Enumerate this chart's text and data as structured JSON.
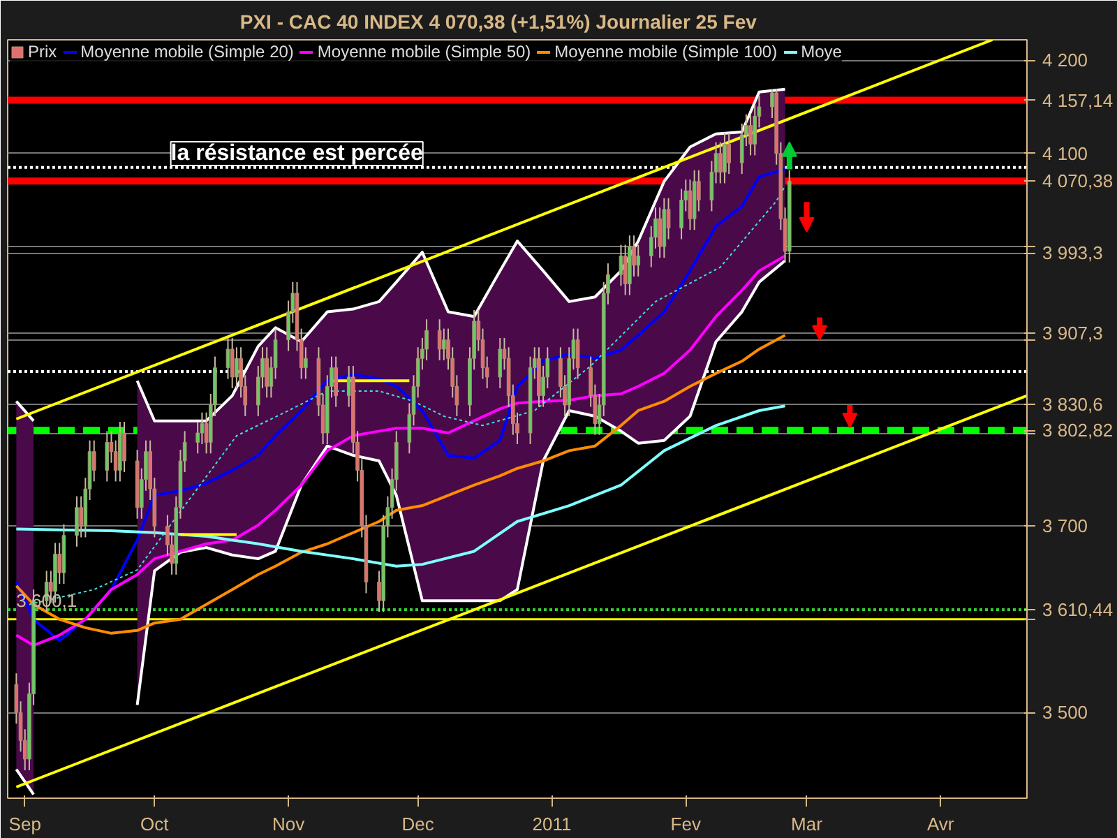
{
  "chart_data": {
    "type": "candlestick",
    "title": "PXI - CAC 40 INDEX    4 070,38 (+1,51%)    Journalier  25 Fev",
    "series": [
      {
        "type": "candlestick",
        "name": "Prix",
        "x": [
          "2010-08-30",
          "2010-08-31",
          "2010-09-01",
          "2010-09-02",
          "2010-09-03",
          "2010-09-06",
          "2010-09-07",
          "2010-09-08",
          "2010-09-09",
          "2010-09-10",
          "2010-09-13",
          "2010-09-14",
          "2010-09-15",
          "2010-09-16",
          "2010-09-17",
          "2010-09-20",
          "2010-09-21",
          "2010-09-22",
          "2010-09-23",
          "2010-09-24",
          "2010-09-27",
          "2010-09-28",
          "2010-09-29",
          "2010-09-30",
          "2010-10-01",
          "2010-10-04",
          "2010-10-05",
          "2010-10-06",
          "2010-10-07",
          "2010-10-08",
          "2010-10-11",
          "2010-10-12",
          "2010-10-13",
          "2010-10-14",
          "2010-10-15",
          "2010-10-18",
          "2010-10-19",
          "2010-10-20",
          "2010-10-21",
          "2010-10-22",
          "2010-10-25",
          "2010-10-26",
          "2010-10-27",
          "2010-10-28",
          "2010-10-29",
          "2010-11-01",
          "2010-11-02",
          "2010-11-03",
          "2010-11-04",
          "2010-11-05",
          "2010-11-08",
          "2010-11-09",
          "2010-11-10",
          "2010-11-11",
          "2010-11-12",
          "2010-11-15",
          "2010-11-16",
          "2010-11-17",
          "2010-11-18",
          "2010-11-19",
          "2010-11-22",
          "2010-11-23",
          "2010-11-24",
          "2010-11-25",
          "2010-11-26",
          "2010-11-29",
          "2010-11-30",
          "2010-12-01",
          "2010-12-02",
          "2010-12-03",
          "2010-12-06",
          "2010-12-07",
          "2010-12-08",
          "2010-12-09",
          "2010-12-10",
          "2010-12-13",
          "2010-12-14",
          "2010-12-15",
          "2010-12-16",
          "2010-12-17",
          "2010-12-20",
          "2010-12-21",
          "2010-12-22",
          "2010-12-23",
          "2010-12-24",
          "2010-12-27",
          "2010-12-28",
          "2010-12-29",
          "2010-12-30",
          "2010-12-31",
          "2011-01-03",
          "2011-01-04",
          "2011-01-05",
          "2011-01-06",
          "2011-01-07",
          "2011-01-10",
          "2011-01-11",
          "2011-01-12",
          "2011-01-13",
          "2011-01-14",
          "2011-01-17",
          "2011-01-18",
          "2011-01-19",
          "2011-01-20",
          "2011-01-21",
          "2011-01-24",
          "2011-01-25",
          "2011-01-26",
          "2011-01-27",
          "2011-01-28",
          "2011-01-31",
          "2011-02-01",
          "2011-02-02",
          "2011-02-03",
          "2011-02-04",
          "2011-02-07",
          "2011-02-08",
          "2011-02-09",
          "2011-02-10",
          "2011-02-11",
          "2011-02-14",
          "2011-02-15",
          "2011-02-16",
          "2011-02-17",
          "2011-02-18",
          "2011-02-21",
          "2011-02-22",
          "2011-02-23",
          "2011-02-24",
          "2011-02-25"
        ],
        "ohlc": [
          [
            3530,
            3542,
            3488,
            3500
          ],
          [
            3500,
            3512,
            3458,
            3470
          ],
          [
            3470,
            3482,
            3438,
            3450
          ],
          [
            3450,
            3532,
            3438,
            3520
          ],
          [
            3520,
            3632,
            3508,
            3620
          ],
          [
            3620,
            3652,
            3608,
            3640
          ],
          [
            3640,
            3652,
            3618,
            3630
          ],
          [
            3630,
            3682,
            3618,
            3670
          ],
          [
            3670,
            3682,
            3638,
            3650
          ],
          [
            3650,
            3702,
            3638,
            3690
          ],
          [
            3690,
            3732,
            3678,
            3720
          ],
          [
            3720,
            3732,
            3688,
            3700
          ],
          [
            3700,
            3752,
            3688,
            3740
          ],
          [
            3740,
            3792,
            3728,
            3780
          ],
          [
            3780,
            3792,
            3748,
            3760
          ],
          [
            3760,
            3802,
            3748,
            3790
          ],
          [
            3790,
            3802,
            3768,
            3780
          ],
          [
            3780,
            3792,
            3748,
            3760
          ],
          [
            3760,
            3812,
            3748,
            3800
          ],
          [
            3800,
            3812,
            3758,
            3770
          ],
          [
            3770,
            3782,
            3708,
            3720
          ],
          [
            3720,
            3762,
            3708,
            3750
          ],
          [
            3750,
            3792,
            3738,
            3780
          ],
          [
            3780,
            3792,
            3728,
            3740
          ],
          [
            3740,
            3752,
            3688,
            3700
          ],
          [
            3700,
            3712,
            3668,
            3680
          ],
          [
            3680,
            3692,
            3648,
            3660
          ],
          [
            3660,
            3732,
            3648,
            3720
          ],
          [
            3720,
            3782,
            3708,
            3770
          ],
          [
            3770,
            3802,
            3758,
            3790
          ],
          [
            3790,
            3812,
            3778,
            3800
          ],
          [
            3800,
            3822,
            3788,
            3810
          ],
          [
            3810,
            3822,
            3778,
            3790
          ],
          [
            3790,
            3842,
            3778,
            3830
          ],
          [
            3830,
            3882,
            3818,
            3870
          ],
          [
            3870,
            3902,
            3858,
            3890
          ],
          [
            3890,
            3902,
            3848,
            3860
          ],
          [
            3860,
            3892,
            3848,
            3880
          ],
          [
            3880,
            3892,
            3838,
            3850
          ],
          [
            3850,
            3862,
            3818,
            3830
          ],
          [
            3830,
            3872,
            3818,
            3860
          ],
          [
            3860,
            3892,
            3848,
            3880
          ],
          [
            3880,
            3892,
            3838,
            3850
          ],
          [
            3850,
            3882,
            3838,
            3870
          ],
          [
            3870,
            3912,
            3858,
            3900
          ],
          [
            3900,
            3942,
            3888,
            3930
          ],
          [
            3930,
            3962,
            3918,
            3950
          ],
          [
            3950,
            3962,
            3888,
            3900
          ],
          [
            3900,
            3912,
            3858,
            3870
          ],
          [
            3870,
            3892,
            3858,
            3880
          ],
          [
            3880,
            3892,
            3818,
            3830
          ],
          [
            3830,
            3842,
            3788,
            3800
          ],
          [
            3800,
            3862,
            3788,
            3850
          ],
          [
            3850,
            3882,
            3838,
            3870
          ],
          [
            3870,
            3882,
            3828,
            3840
          ],
          [
            3840,
            3872,
            3828,
            3860
          ],
          [
            3860,
            3872,
            3778,
            3790
          ],
          [
            3790,
            3802,
            3748,
            3760
          ],
          [
            3760,
            3772,
            3688,
            3700
          ],
          [
            3700,
            3712,
            3628,
            3640
          ],
          [
            3640,
            3652,
            3608,
            3620
          ],
          [
            3620,
            3712,
            3608,
            3700
          ],
          [
            3700,
            3732,
            3688,
            3720
          ],
          [
            3720,
            3762,
            3708,
            3750
          ],
          [
            3750,
            3802,
            3738,
            3790
          ],
          [
            3790,
            3832,
            3778,
            3820
          ],
          [
            3820,
            3862,
            3808,
            3850
          ],
          [
            3850,
            3892,
            3838,
            3880
          ],
          [
            3880,
            3902,
            3868,
            3890
          ],
          [
            3890,
            3922,
            3878,
            3910
          ],
          [
            3910,
            3922,
            3878,
            3890
          ],
          [
            3890,
            3912,
            3878,
            3900
          ],
          [
            3900,
            3912,
            3868,
            3880
          ],
          [
            3880,
            3892,
            3838,
            3850
          ],
          [
            3850,
            3862,
            3818,
            3830
          ],
          [
            3830,
            3892,
            3818,
            3880
          ],
          [
            3880,
            3932,
            3868,
            3920
          ],
          [
            3920,
            3932,
            3888,
            3900
          ],
          [
            3900,
            3912,
            3858,
            3870
          ],
          [
            3870,
            3882,
            3848,
            3860
          ],
          [
            3860,
            3902,
            3848,
            3890
          ],
          [
            3890,
            3902,
            3868,
            3880
          ],
          [
            3880,
            3892,
            3828,
            3840
          ],
          [
            3840,
            3852,
            3798,
            3810
          ],
          [
            3810,
            3822,
            3788,
            3800
          ],
          [
            3800,
            3882,
            3788,
            3870
          ],
          [
            3870,
            3892,
            3858,
            3880
          ],
          [
            3880,
            3892,
            3828,
            3840
          ],
          [
            3840,
            3872,
            3828,
            3860
          ],
          [
            3860,
            3892,
            3848,
            3880
          ],
          [
            3880,
            3892,
            3838,
            3850
          ],
          [
            3850,
            3862,
            3818,
            3830
          ],
          [
            3830,
            3892,
            3818,
            3880
          ],
          [
            3880,
            3912,
            3868,
            3900
          ],
          [
            3900,
            3912,
            3858,
            3870
          ],
          [
            3870,
            3882,
            3828,
            3840
          ],
          [
            3840,
            3852,
            3798,
            3810
          ],
          [
            3810,
            3842,
            3798,
            3830
          ],
          [
            3830,
            3962,
            3818,
            3950
          ],
          [
            3950,
            3982,
            3938,
            3970
          ],
          [
            3970,
            4002,
            3958,
            3990
          ],
          [
            3990,
            4002,
            3948,
            3960
          ],
          [
            3960,
            4012,
            3948,
            4000
          ],
          [
            4000,
            4012,
            3968,
            3980
          ],
          [
            3980,
            4002,
            3968,
            3990
          ],
          [
            3990,
            4022,
            3978,
            4010
          ],
          [
            4010,
            4042,
            3998,
            4030
          ],
          [
            4030,
            4042,
            3988,
            4000
          ],
          [
            4000,
            4052,
            3988,
            4040
          ],
          [
            4040,
            4052,
            4008,
            4020
          ],
          [
            4020,
            4062,
            4008,
            4050
          ],
          [
            4050,
            4072,
            4038,
            4060
          ],
          [
            4060,
            4072,
            4018,
            4030
          ],
          [
            4030,
            4082,
            4018,
            4070
          ],
          [
            4070,
            4082,
            4038,
            4050
          ],
          [
            4050,
            4092,
            4038,
            4080
          ],
          [
            4080,
            4112,
            4068,
            4100
          ],
          [
            4100,
            4112,
            4068,
            4080
          ],
          [
            4080,
            4122,
            4068,
            4110
          ],
          [
            4110,
            4122,
            4078,
            4090
          ],
          [
            4090,
            4132,
            4078,
            4120
          ],
          [
            4120,
            4142,
            4108,
            4130
          ],
          [
            4130,
            4142,
            4098,
            4110
          ],
          [
            4110,
            4152,
            4098,
            4140
          ],
          [
            4140,
            4162,
            4128,
            4150
          ],
          [
            4150,
            4169,
            4138,
            4165
          ],
          [
            4165,
            4169,
            4088,
            4100
          ],
          [
            4100,
            4112,
            4018,
            4030
          ],
          [
            4030,
            4042,
            3983,
            3995
          ],
          [
            3995,
            4082,
            3983,
            4070.38
          ]
        ]
      },
      {
        "type": "line",
        "name": "Moyenne mobile (Simple 20)",
        "color": "#0000ff",
        "x": [
          "2010-08-30",
          "2010-09-03",
          "2010-09-09",
          "2010-09-15",
          "2010-09-21",
          "2010-09-27",
          "2010-10-01",
          "2010-10-07",
          "2010-10-13",
          "2010-10-19",
          "2010-10-25",
          "2010-10-29",
          "2010-11-04",
          "2010-11-10",
          "2010-11-16",
          "2010-11-22",
          "2010-11-26",
          "2010-12-02",
          "2010-12-08",
          "2010-12-14",
          "2010-12-20",
          "2010-12-24",
          "2010-12-30",
          "2011-01-05",
          "2011-01-11",
          "2011-01-17",
          "2011-01-21",
          "2011-01-27",
          "2011-02-02",
          "2011-02-08",
          "2011-02-14",
          "2011-02-18",
          "2011-02-24"
        ],
        "values": [
          3641,
          3600,
          3577,
          3600,
          3632,
          3685,
          3733,
          3738,
          3746,
          3760,
          3776,
          3797,
          3824,
          3856,
          3863,
          3858,
          3850,
          3824,
          3776,
          3773,
          3792,
          3850,
          3877,
          3885,
          3880,
          3889,
          3905,
          3930,
          3974,
          4022,
          4043,
          4075,
          4083
        ],
        "upper": [
          3834,
          3813,
          null,
          null,
          null,
          3856,
          3813,
          3813,
          3813,
          3840,
          3893,
          3913,
          3898,
          3930,
          3933,
          3941,
          3962,
          3994,
          3930,
          3925,
          3974,
          4006,
          3974,
          3941,
          3946,
          3974,
          4006,
          4070,
          4107,
          4121,
          4123,
          4166,
          4169
        ],
        "lower": [
          3439,
          3412,
          null,
          null,
          null,
          3508,
          3652,
          3672,
          3677,
          3669,
          3665,
          3673,
          3744,
          3786,
          3776,
          3770,
          3733,
          3620,
          3620,
          3620,
          3620,
          3632,
          3770,
          3824,
          3818,
          3802,
          3789,
          3792,
          3818,
          3898,
          3930,
          3962,
          3985
        ]
      },
      {
        "type": "line",
        "color": "#ffffff",
        "x": [
          "2010-08-30",
          "2010-09-03",
          "2010-09-09",
          "2010-09-15",
          "2010-09-21",
          "2010-09-27",
          "2010-10-01",
          "2010-10-07",
          "2010-10-13",
          "2010-10-19",
          "2010-10-25",
          "2010-10-29",
          "2010-11-04",
          "2010-11-10",
          "2010-11-16",
          "2010-11-22",
          "2010-11-26",
          "2010-12-02",
          "2010-12-08",
          "2010-12-14",
          "2010-12-20",
          "2010-12-24",
          "2010-12-30",
          "2011-01-05",
          "2011-01-11",
          "2011-01-17",
          "2011-01-21",
          "2011-01-27",
          "2011-02-02",
          "2011-02-08",
          "2011-02-14",
          "2011-02-18",
          "2011-02-24"
        ],
        "values": [
          3834,
          3813,
          null,
          null,
          null,
          3856,
          3813,
          3813,
          3813,
          3840,
          3893,
          3913,
          3898,
          3930,
          3933,
          3941,
          3962,
          3994,
          3930,
          3925,
          3974,
          4006,
          3974,
          3941,
          3946,
          3974,
          4006,
          4070,
          4107,
          4121,
          4123,
          4166,
          4169
        ]
      },
      {
        "type": "line",
        "color": "#ffffff",
        "x": [
          "2010-08-30",
          "2010-09-03",
          "2010-09-09",
          "2010-09-15",
          "2010-09-21",
          "2010-09-27",
          "2010-10-01",
          "2010-10-07",
          "2010-10-13",
          "2010-10-19",
          "2010-10-25",
          "2010-10-29",
          "2010-11-04",
          "2010-11-10",
          "2010-11-16",
          "2010-11-22",
          "2010-11-26",
          "2010-12-02",
          "2010-12-08",
          "2010-12-14",
          "2010-12-20",
          "2010-12-24",
          "2010-12-30",
          "2011-01-05",
          "2011-01-11",
          "2011-01-17",
          "2011-01-21",
          "2011-01-27",
          "2011-02-02",
          "2011-02-08",
          "2011-02-14",
          "2011-02-18",
          "2011-02-24"
        ],
        "values": [
          3439,
          3412,
          null,
          null,
          null,
          3508,
          3652,
          3672,
          3677,
          3669,
          3665,
          3673,
          3744,
          3786,
          3776,
          3770,
          3733,
          3620,
          3620,
          3620,
          3620,
          3632,
          3770,
          3824,
          3818,
          3802,
          3789,
          3792,
          3818,
          3898,
          3930,
          3962,
          3985
        ]
      },
      {
        "type": "line",
        "name": "Moyenne mobile (Simple 50)",
        "color": "#ff00ff",
        "x": [
          "2010-08-30",
          "2010-09-03",
          "2010-09-09",
          "2010-09-15",
          "2010-09-21",
          "2010-09-27",
          "2010-10-01",
          "2010-10-07",
          "2010-10-13",
          "2010-10-19",
          "2010-10-25",
          "2010-10-29",
          "2010-11-04",
          "2010-11-10",
          "2010-11-16",
          "2010-11-22",
          "2010-11-26",
          "2010-12-02",
          "2010-12-08",
          "2010-12-14",
          "2010-12-20",
          "2010-12-24",
          "2010-12-30",
          "2011-01-05",
          "2011-01-11",
          "2011-01-17",
          "2011-01-21",
          "2011-01-27",
          "2011-02-02",
          "2011-02-08",
          "2011-02-14",
          "2011-02-18",
          "2011-02-24"
        ],
        "values": [
          3583,
          3572,
          3583,
          3600,
          3632,
          3648,
          3665,
          3673,
          3681,
          3685,
          3701,
          3717,
          3744,
          3781,
          3797,
          3802,
          3805,
          3805,
          3800,
          3813,
          3826,
          3832,
          3834,
          3835,
          3840,
          3842,
          3850,
          3864,
          3889,
          3925,
          3953,
          3974,
          3990
        ]
      },
      {
        "type": "line",
        "name": "Moyenne mobile (Simple 100)",
        "color": "#ff8c00",
        "x": [
          "2010-08-30",
          "2010-09-03",
          "2010-09-09",
          "2010-09-15",
          "2010-09-21",
          "2010-09-27",
          "2010-10-01",
          "2010-10-07",
          "2010-10-13",
          "2010-10-19",
          "2010-10-25",
          "2010-10-29",
          "2010-11-04",
          "2010-11-10",
          "2010-11-16",
          "2010-11-22",
          "2010-11-26",
          "2010-12-02",
          "2010-12-08",
          "2010-12-14",
          "2010-12-20",
          "2010-12-24",
          "2010-12-30",
          "2011-01-05",
          "2011-01-11",
          "2011-01-17",
          "2011-01-21",
          "2011-01-27",
          "2011-02-02",
          "2011-02-08",
          "2011-02-14",
          "2011-02-18",
          "2011-02-24"
        ],
        "values": [
          3636,
          3616,
          3600,
          3591,
          3585,
          3588,
          3596,
          3600,
          3616,
          3632,
          3648,
          3657,
          3672,
          3681,
          3693,
          3705,
          3717,
          3722,
          3733,
          3744,
          3754,
          3762,
          3770,
          3781,
          3786,
          3808,
          3824,
          3834,
          3850,
          3864,
          3877,
          3890,
          3905
        ]
      },
      {
        "type": "line",
        "name": "Moye",
        "color": "#80ffff",
        "x": [
          "2010-08-30",
          "2010-09-09",
          "2010-09-21",
          "2010-10-01",
          "2010-10-13",
          "2010-10-25",
          "2010-11-04",
          "2010-11-16",
          "2010-11-26",
          "2010-12-02",
          "2010-12-14",
          "2010-12-24",
          "2011-01-05",
          "2011-01-17",
          "2011-01-27",
          "2011-02-08",
          "2011-02-18",
          "2011-02-24"
        ],
        "values": [
          3697,
          3696,
          3695,
          3693,
          3689,
          3681,
          3673,
          3665,
          3657,
          3659,
          3673,
          3705,
          3722,
          3744,
          3781,
          3808,
          3824,
          3829
        ]
      },
      {
        "type": "line",
        "color": "#40e0e0",
        "line_style": "dotted",
        "x": [
          "2010-09-02",
          "2010-09-17",
          "2010-09-27",
          "2010-10-08",
          "2010-10-20",
          "2010-11-01",
          "2010-11-10",
          "2010-11-22",
          "2010-11-30",
          "2010-12-07",
          "2010-12-16",
          "2010-12-28",
          "2011-01-10",
          "2011-01-25",
          "2011-02-09",
          "2011-02-22",
          "2011-02-24"
        ],
        "values": [
          3616,
          3632,
          3653,
          3722,
          3797,
          3824,
          3845,
          3845,
          3834,
          3818,
          3808,
          3824,
          3872,
          3941,
          3978,
          4049,
          4065
        ]
      },
      {
        "type": "line",
        "color": "#ffff00",
        "x": [
          "2010-08-30",
          "2011-04-13"
        ],
        "values": [
          3815,
          4222
        ]
      },
      {
        "type": "line",
        "color": "#ffff00",
        "x": [
          "2010-08-30",
          "2011-04-21"
        ],
        "values": [
          3420,
          3840
        ]
      },
      {
        "type": "line",
        "color": "#ffff00",
        "x": [
          "2010-10-07",
          "2010-10-20"
        ],
        "values": [
          3691,
          3691
        ]
      },
      {
        "type": "line",
        "color": "#ffff00",
        "x": [
          "2010-11-11",
          "2010-11-29"
        ],
        "values": [
          3856,
          3856
        ]
      }
    ],
    "ref_lines": [
      {
        "axis": "y",
        "value": 4157.14,
        "label": "4 157,14",
        "color": "#ff0000",
        "line_style": "solid"
      },
      {
        "axis": "y",
        "value": 4070.38,
        "label": "4 070,38",
        "color": "#ff0000",
        "line_style": "solid"
      },
      {
        "axis": "y",
        "value": 4085,
        "color": "#ffffff",
        "line_style": "dotted"
      },
      {
        "axis": "y",
        "value": 3866,
        "color": "#ffffff",
        "line_style": "dotted"
      },
      {
        "axis": "y",
        "value": 3802.82,
        "label": "3 802,82",
        "color": "#00ff00",
        "line_style": "dashed"
      },
      {
        "axis": "y",
        "value": 3610.44,
        "label": "3 610,44",
        "color": "#33cc33",
        "line_style": "dotted"
      },
      {
        "axis": "y",
        "value": 3600.1,
        "color": "#ffff00",
        "line_style": "solid"
      }
    ],
    "annotations": [
      "la résistance est percée",
      {
        "text": "3 600,1",
        "x": "2010-08-30",
        "y": 3600.1
      }
    ],
    "xlim": [
      "2010-08-28",
      "2011-04-21"
    ],
    "ylim": [
      3408,
      4222
    ],
    "xticks": [
      {
        "value": "2010-09-01",
        "label": "Sep"
      },
      {
        "value": "2010-10-01",
        "label": "Oct"
      },
      {
        "value": "2010-11-01",
        "label": "Nov"
      },
      {
        "value": "2010-12-01",
        "label": "Dec"
      },
      {
        "value": "2011-01-01",
        "label": "2011"
      },
      {
        "value": "2011-02-01",
        "label": "Fev"
      },
      {
        "value": "2011-03-01",
        "label": "Mar"
      },
      {
        "value": "2011-04-01",
        "label": "Avr"
      }
    ],
    "yticks": [
      {
        "value": 3500,
        "label": "3 500"
      },
      {
        "value": 3600,
        "label": null
      },
      {
        "value": 3700,
        "label": "3 700"
      },
      {
        "value": 3800,
        "label": null
      },
      {
        "value": 3830.6,
        "label": "3 830,6"
      },
      {
        "value": 3900,
        "label": null
      },
      {
        "value": 3907.3,
        "label": "3 907,3"
      },
      {
        "value": 3993.3,
        "label": "3 993,3"
      },
      {
        "value": 4000,
        "label": null
      },
      {
        "value": 4100,
        "label": "4 100"
      },
      {
        "value": 4200,
        "label": "4 200"
      }
    ],
    "grid": "y",
    "legend": "top left"
  }
}
